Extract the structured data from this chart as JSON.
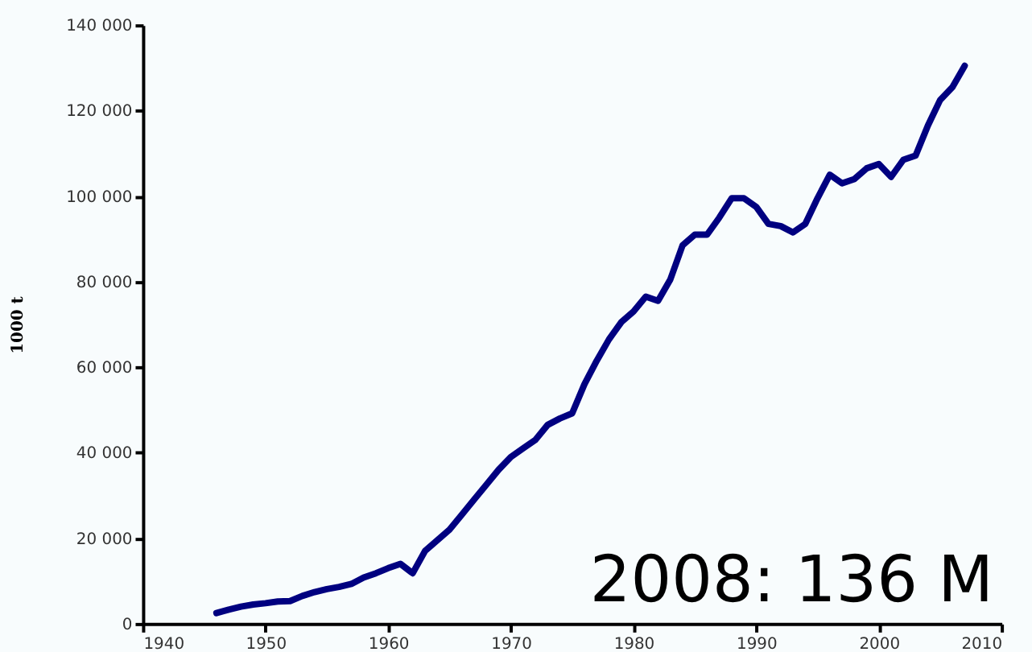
{
  "chart_data": {
    "type": "line",
    "ylabel": "1000 t",
    "x": [
      1946,
      1947,
      1948,
      1949,
      1950,
      1951,
      1952,
      1953,
      1954,
      1955,
      1956,
      1957,
      1958,
      1959,
      1960,
      1961,
      1962,
      1963,
      1964,
      1965,
      1966,
      1967,
      1968,
      1969,
      1970,
      1971,
      1972,
      1973,
      1974,
      1975,
      1976,
      1977,
      1978,
      1979,
      1980,
      1981,
      1982,
      1983,
      1984,
      1985,
      1986,
      1987,
      1988,
      1989,
      1990,
      1991,
      1992,
      1993,
      1994,
      1995,
      1996,
      1997,
      1998,
      1999,
      2000,
      2001,
      2002,
      2003,
      2004,
      2005,
      2006,
      2007
    ],
    "series": [
      {
        "color": "#000080",
        "values": [
          2500,
          3300,
          4000,
          4500,
          4800,
          5200,
          5300,
          6500,
          7400,
          8100,
          8600,
          9300,
          10800,
          11800,
          13000,
          14000,
          11800,
          17000,
          19500,
          22000,
          25500,
          29000,
          32500,
          36000,
          39000,
          41000,
          43000,
          46500,
          48000,
          49200,
          56000,
          61500,
          66500,
          70500,
          73000,
          76500,
          75500,
          80500,
          88500,
          91000,
          91000,
          95000,
          99500,
          99500,
          97500,
          93500,
          93000,
          91500,
          93500,
          99500,
          105000,
          103000,
          104000,
          106500,
          107500,
          104500,
          108500,
          109500,
          116500,
          122500,
          125500,
          130500
        ]
      }
    ],
    "xlim": [
      1940,
      2010
    ],
    "xticks": [
      1940,
      1950,
      1960,
      1970,
      1980,
      1990,
      2000,
      2010
    ],
    "ylim": [
      0,
      140000
    ],
    "yticks": [
      0,
      {
        "value": 20000,
        "label": "20 000"
      },
      {
        "value": 40000,
        "label": "40 000"
      },
      {
        "value": 60000,
        "label": "60 000"
      },
      {
        "value": 80000,
        "label": "80 000"
      },
      {
        "value": 100000,
        "label": "100 000"
      },
      {
        "value": 120000,
        "label": "120 000"
      },
      {
        "value": 140000,
        "label": "140 000"
      }
    ],
    "grid": false,
    "marker": "none",
    "line_style": "solid",
    "annotations": [
      "2008: 136 M"
    ]
  }
}
